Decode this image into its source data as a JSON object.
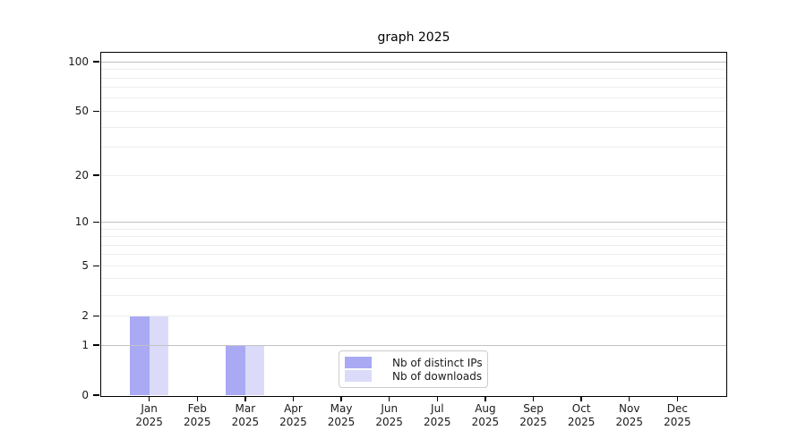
{
  "window": {
    "background": "#ffffff"
  },
  "chart_data": {
    "type": "bar",
    "title": "graph 2025",
    "x": {
      "categories": [
        "Jan",
        "Feb",
        "Mar",
        "Apr",
        "May",
        "Jun",
        "Jul",
        "Aug",
        "Sep",
        "Oct",
        "Nov",
        "Dec"
      ],
      "year": "2025"
    },
    "series": [
      {
        "name": "Nb of distinct IPs",
        "color": "#a9a9f4",
        "values": [
          2,
          0,
          1,
          0,
          0,
          0,
          0,
          0,
          0,
          0,
          0,
          0
        ]
      },
      {
        "name": "Nb of downloads",
        "color": "#dbdbf9",
        "values": [
          2,
          0,
          1,
          0,
          0,
          0,
          0,
          0,
          0,
          0,
          0,
          0
        ]
      }
    ],
    "y_axis": {
      "scale": "log10(1+v)",
      "tick_labels": [
        0,
        1,
        2,
        5,
        10,
        20,
        50,
        100
      ],
      "major_gridlines": [
        1,
        10,
        100
      ],
      "minor_gridlines": [
        2,
        3,
        4,
        5,
        6,
        7,
        8,
        9,
        20,
        30,
        40,
        50,
        60,
        70,
        80,
        90
      ]
    },
    "legend": {
      "position": "lower center inside",
      "entries": [
        "Nb of distinct IPs",
        "Nb of downloads"
      ]
    },
    "styles": {
      "major_grid_color": "#c2c2c2",
      "minor_grid_color": "#ededed",
      "axis_color": "#000000",
      "text_color": "#1a1a1a",
      "legend_border_color": "#cccccc"
    }
  }
}
